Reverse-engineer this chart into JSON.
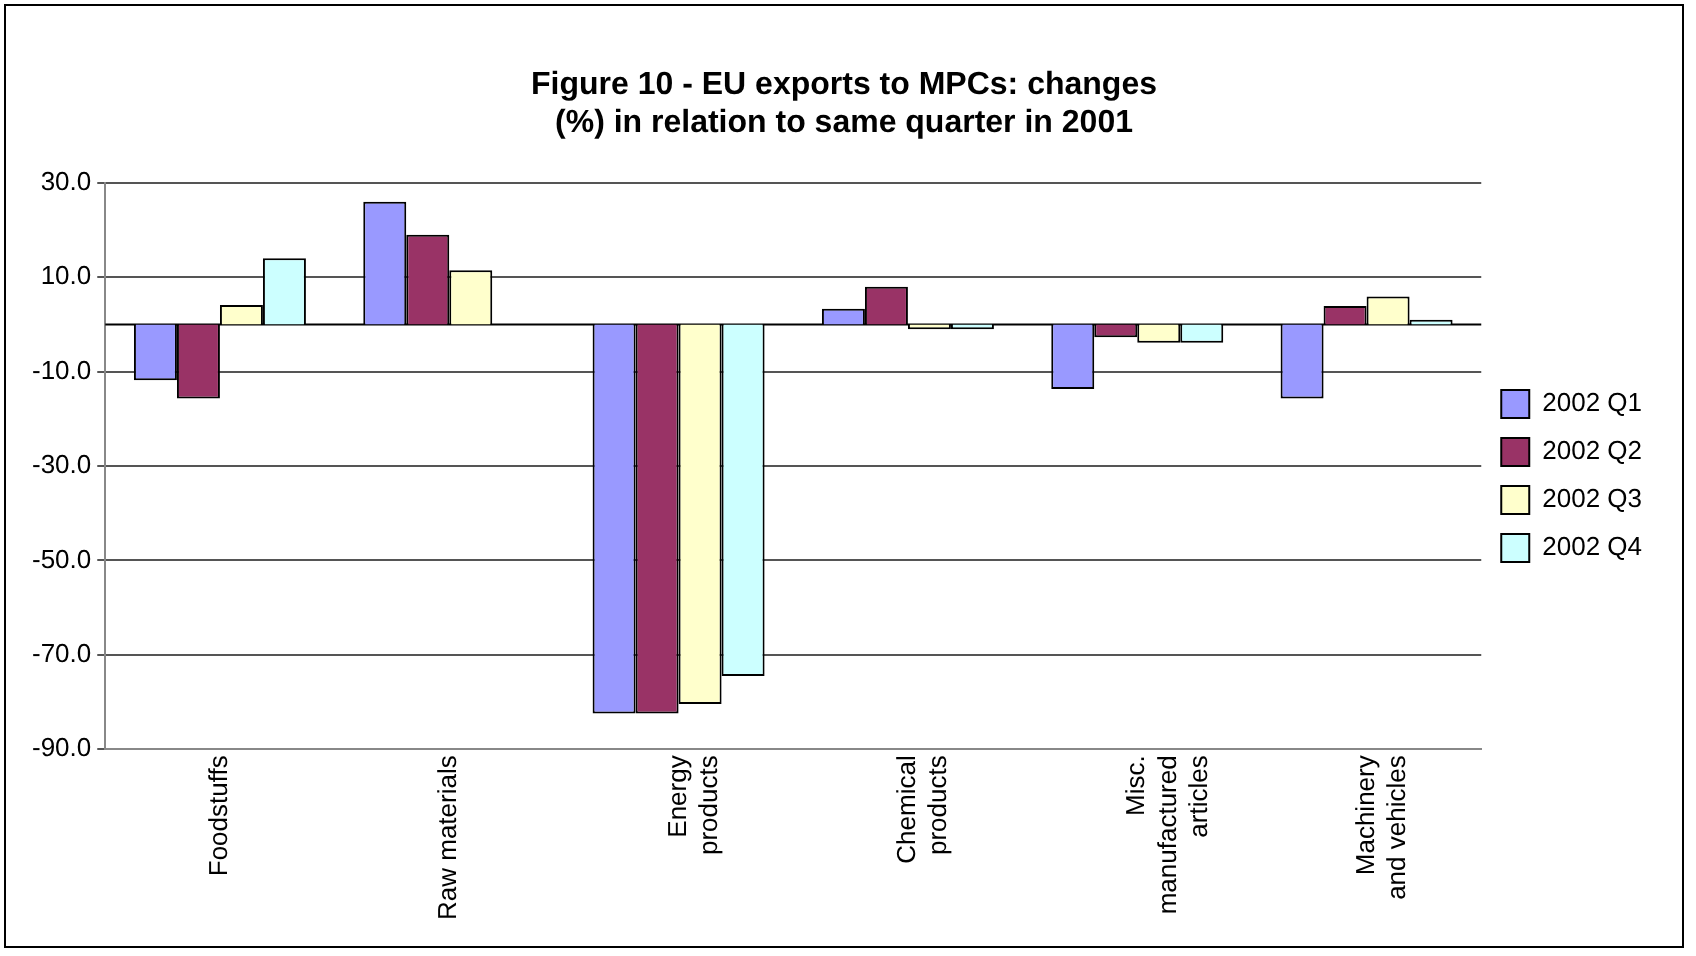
{
  "chart_data": {
    "type": "bar",
    "title": "Figure 10 - EU exports to MPCs: changes (%) in relation to same quarter in 2001",
    "categories": [
      "Foodstuffs",
      "Raw materials",
      "Energy products",
      "Chemical products",
      "Misc. manufactured articles",
      "Machinery and vehicles"
    ],
    "series": [
      {
        "name": "2002 Q1",
        "color": "#9999ff",
        "values": [
          -11.8,
          26,
          -82.4,
          3.3,
          -13.7,
          -15.7
        ]
      },
      {
        "name": "2002 Q2",
        "color": "#993366",
        "values": [
          -15.7,
          19,
          -82.4,
          8,
          -2.7,
          3.9
        ]
      },
      {
        "name": "2002 Q3",
        "color": "#ffffcc",
        "values": [
          4.1,
          11.5,
          -80.4,
          -1,
          -3.9,
          5.9
        ]
      },
      {
        "name": "2002 Q4",
        "color": "#ccffff",
        "values": [
          14,
          0,
          -74.5,
          -1,
          -3.9,
          1
        ]
      }
    ],
    "ylim": [
      -90,
      30
    ],
    "yticks": [
      {
        "value": -90,
        "label": "-90.0"
      },
      {
        "value": -70,
        "label": "-70.0"
      },
      {
        "value": -50,
        "label": "-50.0"
      },
      {
        "value": -30,
        "label": "-30.0"
      },
      {
        "value": -10,
        "label": "-10.0"
      },
      {
        "value": 10,
        "label": "10.0"
      },
      {
        "value": 30,
        "label": "30.0"
      }
    ],
    "grid": "y",
    "legend": "right"
  }
}
